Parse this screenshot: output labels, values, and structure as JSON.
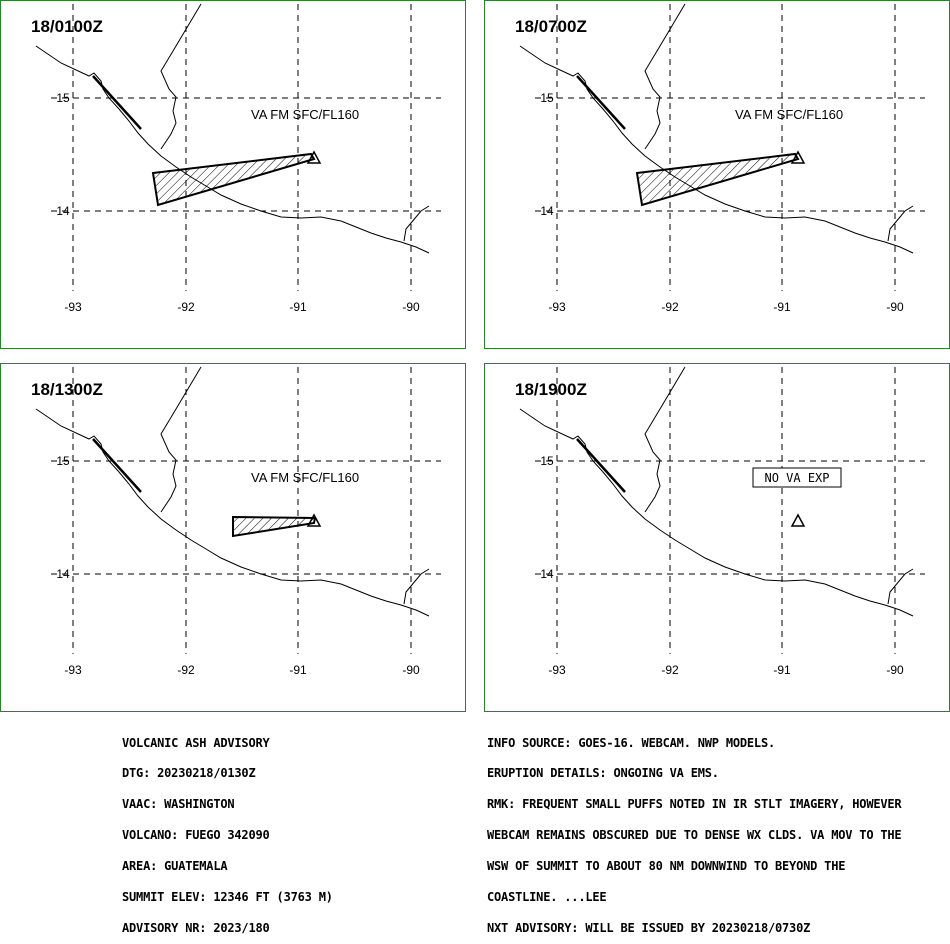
{
  "panels": [
    {
      "time": "18/0100Z",
      "label": "VA FM SFC/FL160",
      "boxed": false,
      "ash": "large"
    },
    {
      "time": "18/0700Z",
      "label": "VA FM SFC/FL160",
      "boxed": false,
      "ash": "large"
    },
    {
      "time": "18/1300Z",
      "label": "VA FM SFC/FL160",
      "boxed": false,
      "ash": "small"
    },
    {
      "time": "18/1900Z",
      "label": "NO VA EXP",
      "boxed": true,
      "ash": "none"
    }
  ],
  "axes": {
    "lon_ticks": [
      "-93",
      "-92",
      "-91",
      "-90"
    ],
    "lat_ticks": [
      "15",
      "14"
    ]
  },
  "summit_symbol": "volcano-triangle-icon",
  "advisory_left": [
    "VOLCANIC ASH ADVISORY",
    "DTG: 20230218/0130Z",
    "VAAC: WASHINGTON",
    "VOLCANO: FUEGO 342090",
    "AREA: GUATEMALA",
    "SUMMIT ELEV: 12346 FT (3763 M)",
    "ADVISORY NR: 2023/180"
  ],
  "advisory_right": [
    "INFO SOURCE: GOES-16. WEBCAM. NWP MODELS.",
    "ERUPTION DETAILS: ONGOING VA EMS.",
    "RMK: FREQUENT SMALL PUFFS NOTED IN IR STLT IMAGERY, HOWEVER",
    "WEBCAM REMAINS OBSCURED DUE TO DENSE WX CLDS. VA MOV TO THE",
    "WSW OF SUMMIT TO ABOUT 80 NM DOWNWIND TO BEYOND THE",
    "COASTLINE. ...LEE",
    "NXT ADVISORY: WILL BE ISSUED BY 20230218/0730Z"
  ],
  "colors": {
    "frame": "#2e7d32",
    "ink": "#000000"
  }
}
